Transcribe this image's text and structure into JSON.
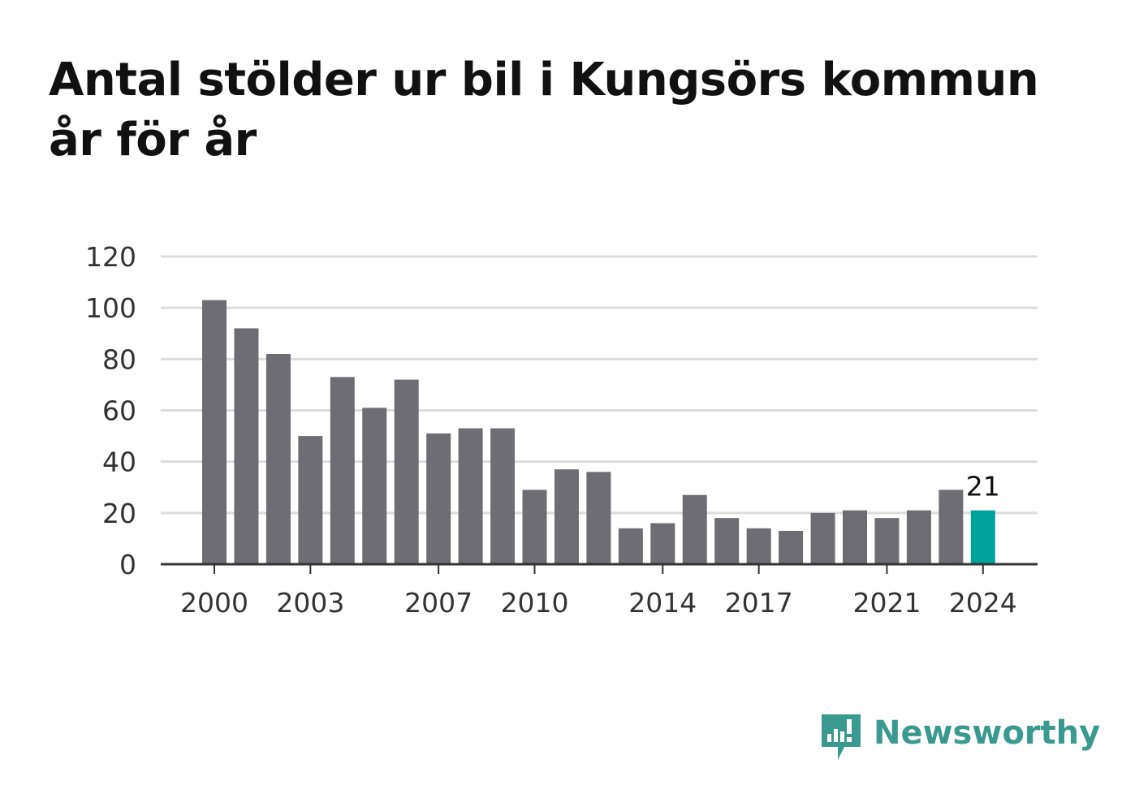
{
  "title": "Antal stölder ur bil i Kungsörs kommun år för år",
  "brand": {
    "name": "Newsworthy",
    "color": "#3a9a8f"
  },
  "chart_data": {
    "type": "bar",
    "title": "Antal stölder ur bil i Kungsörs kommun år för år",
    "categories": [
      2000,
      2001,
      2002,
      2003,
      2004,
      2005,
      2006,
      2007,
      2008,
      2009,
      2010,
      2011,
      2012,
      2013,
      2014,
      2015,
      2016,
      2017,
      2018,
      2019,
      2020,
      2021,
      2022,
      2023,
      2024
    ],
    "values": [
      103,
      92,
      82,
      50,
      73,
      61,
      72,
      51,
      53,
      53,
      29,
      37,
      36,
      14,
      16,
      27,
      18,
      14,
      13,
      20,
      21,
      18,
      21,
      29,
      21
    ],
    "x_tick_labels": [
      "2000",
      "2003",
      "2007",
      "2010",
      "2014",
      "2017",
      "2021",
      "2024"
    ],
    "y_ticks": [
      0,
      20,
      40,
      60,
      80,
      100,
      120
    ],
    "ylim": [
      0,
      120
    ],
    "xlabel": "",
    "ylabel": "",
    "grid": true,
    "highlight": {
      "category": 2024,
      "label": "21",
      "color": "#00a39b"
    },
    "bar_color": "#6e6d73",
    "grid_color": "#dcdcdc",
    "axis_color": "#333333"
  }
}
